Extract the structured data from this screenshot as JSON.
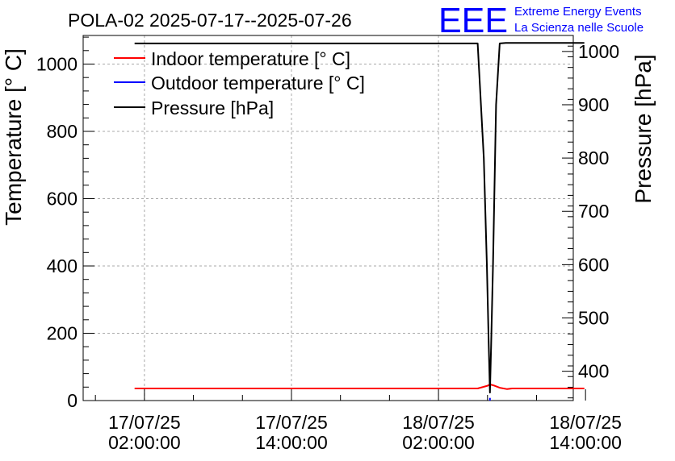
{
  "chart_data": {
    "type": "line",
    "title": "POLA-02 2025-07-17--2025-07-26",
    "logo": {
      "mark": "EEE",
      "line1": "Extreme Energy Events",
      "line2": "La Scienza nelle Scuole",
      "color": "#0000ff"
    },
    "ylabel_left": "Temperature [° C]",
    "ylabel_right": "Pressure [hPa]",
    "x_unit": "hours since 17/07/25 00:00:00",
    "xlim": [
      -3.0,
      37.0
    ],
    "ylim_left": [
      0,
      1085
    ],
    "ylim_right": [
      345,
      1030
    ],
    "x_ticks": [
      {
        "x": 2,
        "date": "17/07/25",
        "time": "02:00:00"
      },
      {
        "x": 14,
        "date": "17/07/25",
        "time": "14:00:00"
      },
      {
        "x": 26,
        "date": "18/07/25",
        "time": "02:00:00"
      },
      {
        "x": 38,
        "date": "18/07/25",
        "time": "14:00:00"
      }
    ],
    "y_ticks_left": [
      0,
      200,
      400,
      600,
      800,
      1000
    ],
    "y_ticks_right": [
      400,
      500,
      600,
      700,
      800,
      900,
      1000
    ],
    "grid": true,
    "legend_placement": "top-left",
    "series": [
      {
        "name": "Indoor temperature [° C]",
        "axis": "left",
        "color": "#ff0000",
        "x": [
          1.2,
          4,
          8,
          12,
          16,
          20,
          24,
          28,
          29.2,
          30.0,
          30.2,
          30.5,
          31.0,
          31.6,
          32,
          34,
          36,
          37.9
        ],
        "y": [
          36,
          36,
          36,
          36,
          36,
          36,
          36,
          36,
          36,
          44,
          48,
          45,
          38,
          34,
          36,
          36,
          36,
          36
        ]
      },
      {
        "name": "Outdoor temperature [° C]",
        "axis": "left",
        "color": "#0000ff",
        "x": [
          30.2,
          30.2
        ],
        "y": [
          0,
          8
        ]
      },
      {
        "name": "Pressure [hPa]",
        "axis": "right",
        "color": "#000000",
        "x": [
          1.2,
          4,
          8,
          12,
          16,
          20,
          24,
          28,
          29.2,
          29.7,
          29.95,
          30.1,
          30.2,
          30.3,
          30.45,
          30.7,
          31.0,
          31.5,
          34,
          37.9
        ],
        "y": [
          1015,
          1015,
          1015,
          1015,
          1015,
          1015,
          1015,
          1015,
          1015,
          800,
          600,
          450,
          360,
          450,
          600,
          900,
          1015,
          1016,
          1016,
          1016
        ]
      }
    ]
  }
}
